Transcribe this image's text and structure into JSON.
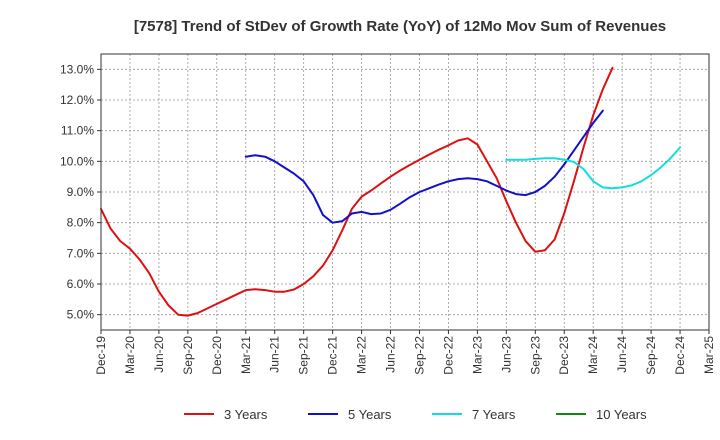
{
  "chart_data": {
    "type": "line",
    "title": "[7578]  Trend of StDev of Growth Rate (YoY) of 12Mo Mov Sum of Revenues",
    "xlabel": "",
    "ylabel": "",
    "x_tick_labels": [
      "Dec-19",
      "Mar-20",
      "Jun-20",
      "Sep-20",
      "Dec-20",
      "Mar-21",
      "Jun-21",
      "Sep-21",
      "Dec-21",
      "Mar-22",
      "Jun-22",
      "Sep-22",
      "Dec-22",
      "Mar-23",
      "Jun-23",
      "Sep-23",
      "Dec-23",
      "Mar-24",
      "Jun-24",
      "Sep-24",
      "Dec-24",
      "Mar-25"
    ],
    "y_ticks": [
      5.0,
      6.0,
      7.0,
      8.0,
      9.0,
      10.0,
      11.0,
      12.0,
      13.0
    ],
    "y_tick_labels": [
      "5.0%",
      "6.0%",
      "7.0%",
      "8.0%",
      "9.0%",
      "10.0%",
      "11.0%",
      "12.0%",
      "13.0%"
    ],
    "ylim": [
      4.5,
      13.5
    ],
    "grid": true,
    "legend_position": "bottom",
    "series": [
      {
        "name": "3 Years",
        "color": "#dd1111",
        "start_index": 0,
        "values": [
          8.45,
          7.8,
          7.4,
          7.15,
          6.8,
          6.35,
          5.75,
          5.3,
          5.0,
          4.97,
          5.05,
          5.2,
          5.35,
          5.5,
          5.65,
          5.8,
          5.83,
          5.8,
          5.75,
          5.75,
          5.82,
          6.0,
          6.25,
          6.6,
          7.1,
          7.75,
          8.45,
          8.85,
          9.05,
          9.28,
          9.5,
          9.7,
          9.88,
          10.05,
          10.22,
          10.38,
          10.52,
          10.68,
          10.75,
          10.55,
          10.0,
          9.45,
          8.7,
          8.0,
          7.4,
          7.05,
          7.1,
          7.45,
          8.3,
          9.35,
          10.45,
          11.5,
          12.35,
          13.05
        ]
      },
      {
        "name": "5 Years",
        "color": "#1111cc",
        "start_index": 15,
        "values": [
          10.15,
          10.2,
          10.15,
          10.0,
          9.8,
          9.6,
          9.35,
          8.9,
          8.25,
          8.0,
          8.05,
          8.3,
          8.35,
          8.28,
          8.3,
          8.42,
          8.62,
          8.83,
          9.0,
          9.12,
          9.24,
          9.35,
          9.42,
          9.45,
          9.42,
          9.35,
          9.2,
          9.05,
          8.93,
          8.9,
          9.0,
          9.2,
          9.5,
          9.9,
          10.35,
          10.8,
          11.25,
          11.65
        ]
      },
      {
        "name": "7 Years",
        "color": "#11dddd",
        "start_index": 42,
        "values": [
          10.05,
          10.05,
          10.05,
          10.08,
          10.1,
          10.1,
          10.05,
          9.98,
          9.75,
          9.35,
          9.15,
          9.12,
          9.15,
          9.22,
          9.35,
          9.55,
          9.8,
          10.1,
          10.45
        ]
      },
      {
        "name": "10 Years",
        "color": "#118811",
        "start_index": 0,
        "values": []
      }
    ]
  }
}
